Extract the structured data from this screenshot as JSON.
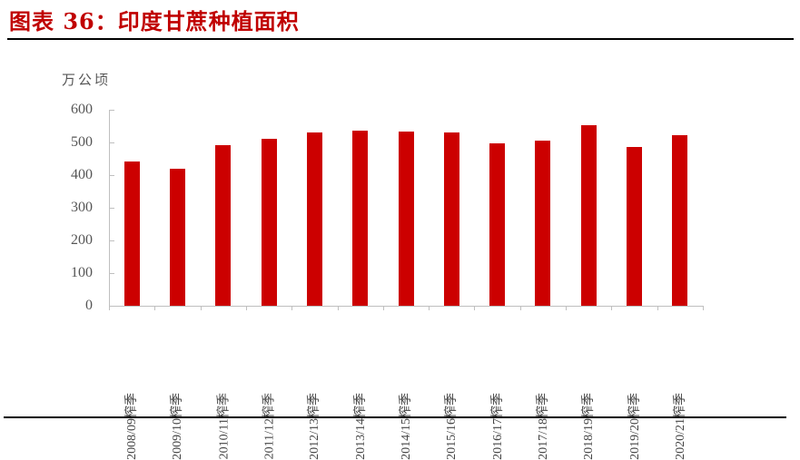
{
  "header": {
    "title": "图表 36：印度甘蔗种植面积"
  },
  "chart_data": {
    "type": "bar",
    "title": "印度甘蔗种植面积",
    "figure_label": "图表 36",
    "unit_label": "万公顷",
    "xlabel": "",
    "ylabel": "万公顷",
    "ylim": [
      0,
      600
    ],
    "yticks": [
      0,
      100,
      200,
      300,
      400,
      500,
      600
    ],
    "grid": false,
    "legend": null,
    "bar_color": "#cc0000",
    "categories": [
      "2008/09榨季",
      "2009/10榨季",
      "2010/11榨季",
      "2011/12榨季",
      "2012/13榨季",
      "2013/14榨季",
      "2014/15榨季",
      "2015/16榨季",
      "2016/17榨季",
      "2017/18榨季",
      "2018/19榨季",
      "2019/20榨季",
      "2020/21榨季"
    ],
    "values": [
      442,
      419,
      492,
      511,
      531,
      536,
      533,
      531,
      497,
      506,
      553,
      486,
      522
    ]
  },
  "colors": {
    "title": "#c00000",
    "bar": "#cc0000",
    "axis": "#bfbfbf",
    "tick_text": "#555555"
  }
}
